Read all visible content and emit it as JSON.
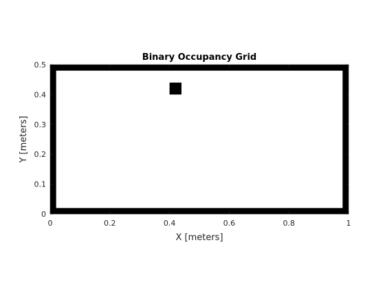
{
  "chart_data": {
    "type": "heatmap",
    "title": "Binary Occupancy Grid",
    "xlabel": "X [meters]",
    "ylabel": "Y [meters]",
    "xlim": [
      0,
      1
    ],
    "ylim": [
      0,
      0.5
    ],
    "xticks": [
      0,
      0.2,
      0.4,
      0.6,
      0.8,
      1
    ],
    "xtick_labels": [
      "0",
      "0.2",
      "0.4",
      "0.6",
      "0.8",
      "1"
    ],
    "yticks": [
      0,
      0.1,
      0.2,
      0.3,
      0.4,
      0.5
    ],
    "ytick_labels": [
      "0",
      "0.1",
      "0.2",
      "0.3",
      "0.4",
      "0.5"
    ],
    "grid": false,
    "resolution_m": 0.02,
    "occupied_color": "#000000",
    "free_color": "#ffffff",
    "occupied_regions": [
      {
        "name": "bottom-wall",
        "x": [
          0,
          1
        ],
        "y": [
          0,
          0.02
        ]
      },
      {
        "name": "top-wall",
        "x": [
          0,
          1
        ],
        "y": [
          0.48,
          0.5
        ]
      },
      {
        "name": "left-wall",
        "x": [
          0,
          0.02
        ],
        "y": [
          0,
          0.5
        ]
      },
      {
        "name": "right-wall",
        "x": [
          0.98,
          1
        ],
        "y": [
          0,
          0.5
        ]
      },
      {
        "name": "obstacle",
        "x": [
          0.4,
          0.44
        ],
        "y": [
          0.4,
          0.44
        ]
      }
    ]
  }
}
